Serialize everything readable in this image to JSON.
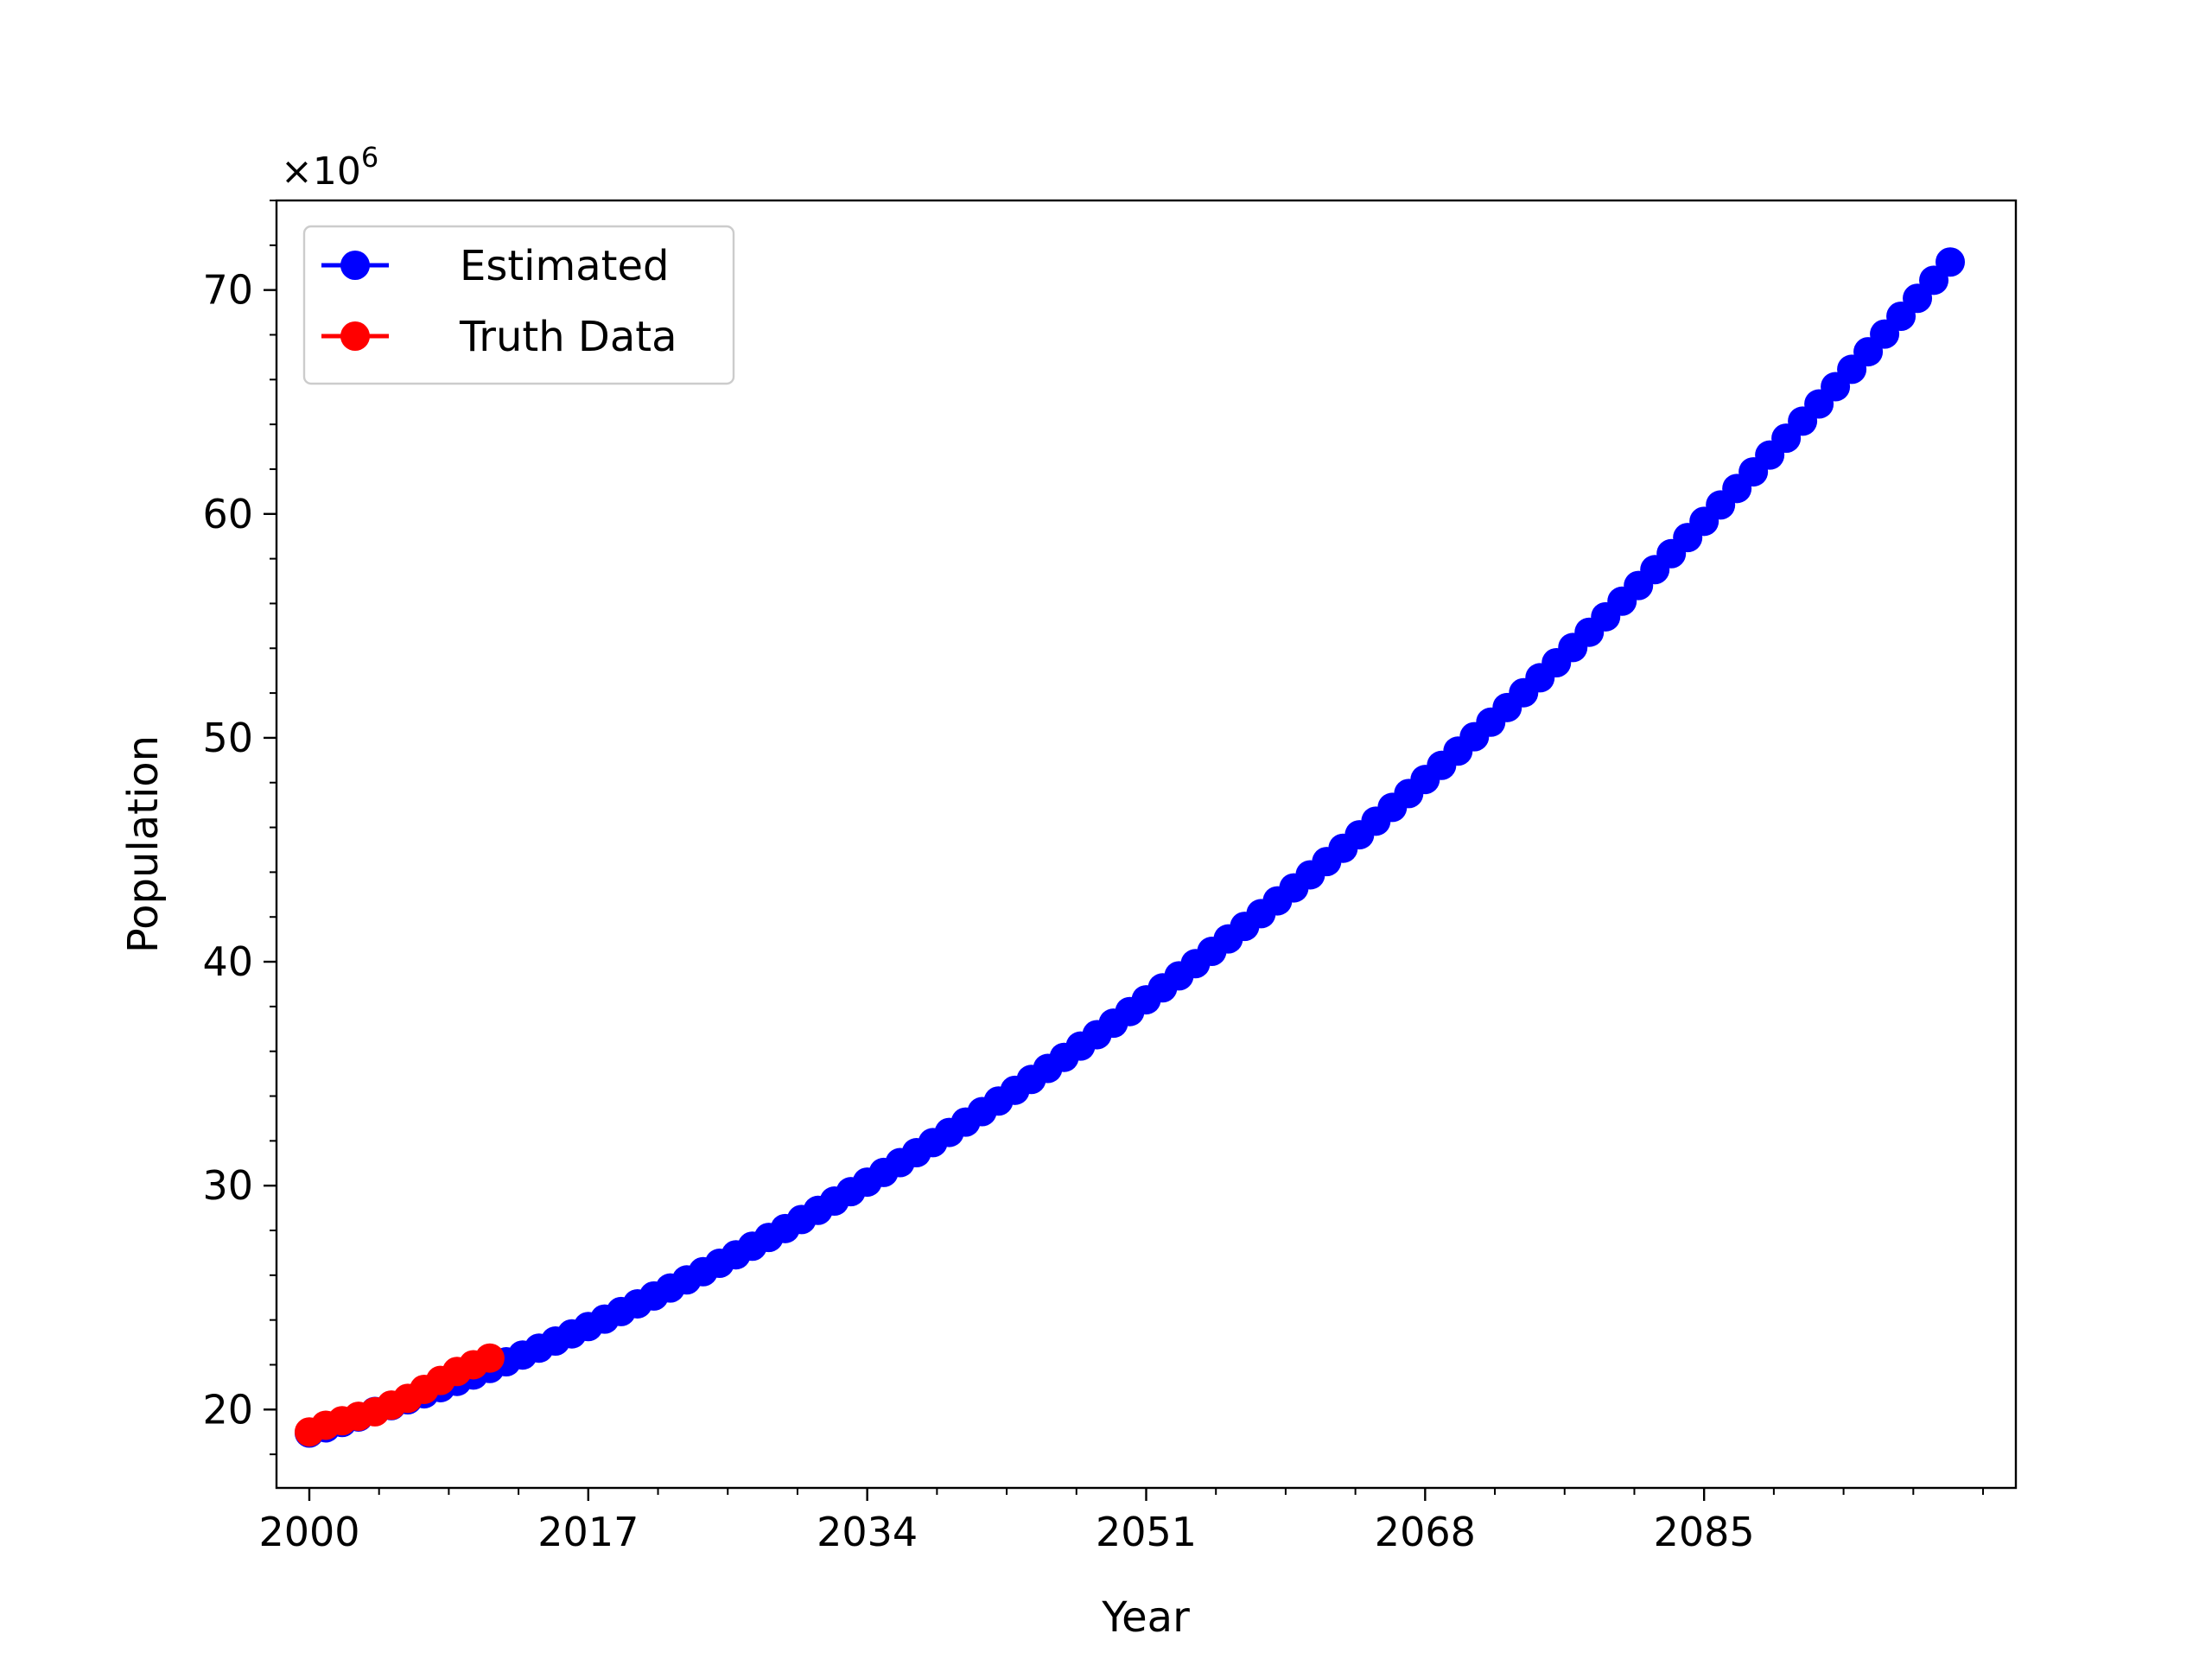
{
  "chart_data": {
    "type": "line",
    "title": "",
    "xlabel": "Year",
    "ylabel": "Population",
    "y_multiplier_label": "×10",
    "y_multiplier_exponent": "6",
    "xlim": [
      1998,
      2104
    ],
    "ylim": [
      16.5,
      74
    ],
    "x_major_ticks": [
      2000,
      2017,
      2034,
      2051,
      2068,
      2085
    ],
    "x_tick_labels": [
      "2000",
      "2017",
      "2034",
      "2051",
      "2068",
      "2085"
    ],
    "x_minor_step": 4.25,
    "y_major_ticks": [
      20,
      30,
      40,
      50,
      60,
      70
    ],
    "y_tick_labels": [
      "20",
      "30",
      "40",
      "50",
      "60",
      "70"
    ],
    "y_minor_step": 2,
    "grid": false,
    "legend_position": "top-left",
    "series": [
      {
        "name": "Estimated",
        "color": "#0000ff",
        "marker": "circle",
        "x_start": 2000,
        "x_end": 2100,
        "x_step": 1,
        "quadratic_fit": {
          "x0": 2000,
          "a": 18.95,
          "b": 0.23,
          "c": 0.00293
        }
      },
      {
        "name": "Truth Data",
        "color": "#ff0000",
        "marker": "circle",
        "x": [
          2000,
          2001,
          2002,
          2003,
          2004,
          2005,
          2006,
          2007,
          2008,
          2009,
          2010,
          2011
        ],
        "y": [
          19.0,
          19.3,
          19.5,
          19.7,
          19.9,
          20.2,
          20.5,
          20.9,
          21.3,
          21.7,
          22.0,
          22.3
        ]
      }
    ]
  }
}
